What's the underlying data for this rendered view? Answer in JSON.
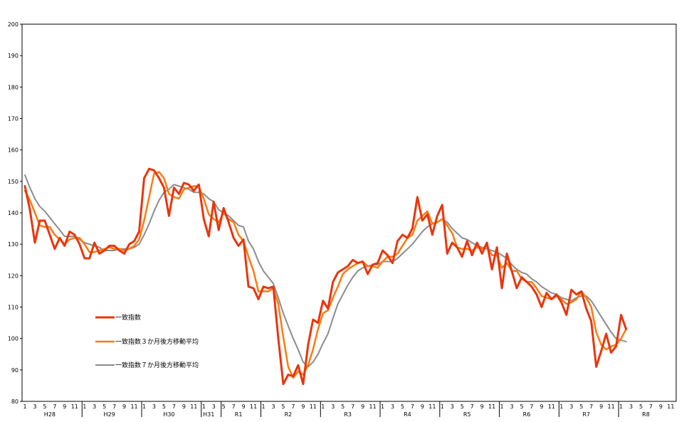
{
  "chart_data": {
    "type": "line",
    "ylim": [
      80,
      200
    ],
    "yticks": [
      80,
      90,
      100,
      110,
      120,
      130,
      140,
      150,
      160,
      170,
      180,
      190,
      200
    ],
    "grid": false,
    "legend_position": "bottom-left",
    "month_labels": [
      "1",
      "3",
      "5",
      "7",
      "9",
      "11",
      "1",
      "3",
      "5",
      "7",
      "9",
      "11",
      "1",
      "3",
      "5",
      "7",
      "9",
      "11",
      "1",
      "3",
      "5",
      "7",
      "9",
      "11",
      "1",
      "3",
      "5",
      "7",
      "9",
      "11",
      "1",
      "3",
      "5",
      "7",
      "9",
      "11",
      "1",
      "3",
      "5",
      "7",
      "9",
      "11",
      "1",
      "3",
      "5",
      "7",
      "9",
      "11",
      "1",
      "3",
      "5",
      "7",
      "9",
      "11",
      "1",
      "3",
      "5",
      "7",
      "9",
      "11",
      "1",
      "3",
      "5",
      "7",
      "9",
      "11"
    ],
    "era_labels": [
      {
        "label": "H28",
        "month_index": 5
      },
      {
        "label": "H29",
        "month_index": 17
      },
      {
        "label": "H30",
        "month_index": 29
      },
      {
        "label": "H31",
        "month_index": 37
      },
      {
        "label": "R1",
        "month_index": 43
      },
      {
        "label": "R2",
        "month_index": 53
      },
      {
        "label": "R3",
        "month_index": 65
      },
      {
        "label": "R4",
        "month_index": 77
      },
      {
        "label": "R5",
        "month_index": 89
      },
      {
        "label": "R6",
        "month_index": 101
      },
      {
        "label": "R7",
        "month_index": 113
      },
      {
        "label": "R8",
        "month_index": 125
      }
    ],
    "era_boundaries": [
      12,
      24,
      36,
      40,
      48,
      60,
      72,
      84,
      96,
      108,
      120
    ],
    "x_count": 132,
    "series": [
      {
        "name": "一致指数",
        "color": "#e8360e",
        "values": [
          148.5,
          141.0,
          130.5,
          137.5,
          137.5,
          133.0,
          128.5,
          132.0,
          129.5,
          134.0,
          133.0,
          130.0,
          125.5,
          125.5,
          130.5,
          127.0,
          128.0,
          129.5,
          129.5,
          128.0,
          127.0,
          130.0,
          131.0,
          134.0,
          151.0,
          154.0,
          153.5,
          151.0,
          148.0,
          139.0,
          148.0,
          146.0,
          149.5,
          149.0,
          147.0,
          149.0,
          138.0,
          132.5,
          143.5,
          134.5,
          141.5,
          137.0,
          132.0,
          129.5,
          131.5,
          116.5,
          116.0,
          112.5,
          116.5,
          116.0,
          116.5,
          100.0,
          85.5,
          88.5,
          88.0,
          91.5,
          85.5,
          98.0,
          106.0,
          105.0,
          112.0,
          109.5,
          118.0,
          121.0,
          122.0,
          123.0,
          125.0,
          124.0,
          124.5,
          120.5,
          123.5,
          124.0,
          128.0,
          126.5,
          124.0,
          131.0,
          133.0,
          132.0,
          135.0,
          145.0,
          137.5,
          139.5,
          133.0,
          139.0,
          142.5,
          127.0,
          130.5,
          129.0,
          126.0,
          131.0,
          126.5,
          130.5,
          127.0,
          130.5,
          122.0,
          129.0,
          116.0,
          127.0,
          121.5,
          116.0,
          119.5,
          118.0,
          116.5,
          114.0,
          110.0,
          114.5,
          112.5,
          114.0,
          111.5,
          107.5,
          115.5,
          114.0,
          115.0,
          109.5,
          105.5,
          91.0,
          96.0,
          101.5,
          95.5,
          97.5,
          107.5,
          103.0
        ]
      },
      {
        "name": "一致指数３か月後方移動平均",
        "color": "#f97b10",
        "values": [
          147.0,
          144.0,
          140.0,
          136.0,
          135.5,
          135.5,
          133.0,
          131.5,
          130.0,
          131.5,
          132.0,
          132.0,
          130.0,
          127.5,
          127.5,
          128.0,
          128.5,
          129.0,
          128.5,
          128.5,
          128.0,
          128.5,
          129.5,
          131.5,
          137.5,
          145.0,
          152.5,
          153.0,
          151.0,
          146.0,
          145.0,
          144.5,
          147.5,
          148.0,
          148.5,
          148.5,
          144.5,
          139.5,
          138.0,
          137.0,
          140.0,
          138.0,
          137.0,
          133.0,
          131.0,
          126.0,
          121.5,
          115.0,
          115.0,
          115.0,
          116.0,
          111.0,
          100.5,
          91.0,
          87.5,
          89.5,
          88.5,
          91.5,
          96.5,
          103.0,
          108.0,
          109.0,
          113.0,
          116.5,
          120.5,
          122.0,
          123.0,
          124.0,
          124.5,
          123.0,
          123.0,
          122.5,
          124.5,
          126.0,
          126.0,
          127.0,
          129.5,
          132.0,
          133.0,
          137.5,
          139.0,
          140.5,
          136.5,
          137.0,
          138.0,
          136.0,
          133.5,
          129.0,
          128.5,
          128.5,
          128.0,
          129.0,
          128.5,
          129.5,
          126.5,
          126.5,
          122.5,
          124.0,
          121.5,
          121.5,
          119.0,
          118.0,
          118.0,
          116.0,
          113.5,
          113.0,
          112.5,
          113.5,
          112.5,
          111.0,
          111.5,
          112.5,
          115.0,
          113.0,
          110.0,
          102.0,
          98.0,
          96.5,
          97.5,
          98.0,
          100.0,
          103.0
        ]
      },
      {
        "name": "一致指数７か月後方移動平均",
        "color": "#8c8c8c",
        "values": [
          152.0,
          148.0,
          144.5,
          142.0,
          140.5,
          138.5,
          136.5,
          134.5,
          132.5,
          132.5,
          132.5,
          131.5,
          130.5,
          130.0,
          129.5,
          129.0,
          128.0,
          128.0,
          128.0,
          128.5,
          128.5,
          128.5,
          129.0,
          130.0,
          133.0,
          136.5,
          140.5,
          144.0,
          146.5,
          147.5,
          149.0,
          148.5,
          148.0,
          147.5,
          146.5,
          146.5,
          146.0,
          144.5,
          143.5,
          141.0,
          140.0,
          139.0,
          137.5,
          136.0,
          135.5,
          131.0,
          128.5,
          124.5,
          121.5,
          119.5,
          117.5,
          113.0,
          108.0,
          104.0,
          100.0,
          96.5,
          92.5,
          91.0,
          92.5,
          95.0,
          98.5,
          101.5,
          106.5,
          111.0,
          114.0,
          117.0,
          119.5,
          121.5,
          122.5,
          123.0,
          123.5,
          123.5,
          124.5,
          124.5,
          124.5,
          125.5,
          127.0,
          128.5,
          130.0,
          132.0,
          134.0,
          135.5,
          136.5,
          137.0,
          138.0,
          137.0,
          135.0,
          133.5,
          132.0,
          131.5,
          130.5,
          129.5,
          129.0,
          128.5,
          128.0,
          127.5,
          126.5,
          125.5,
          123.5,
          122.0,
          121.0,
          120.5,
          119.0,
          118.0,
          116.5,
          115.5,
          114.5,
          114.0,
          113.0,
          112.5,
          112.0,
          113.0,
          113.5,
          113.5,
          112.0,
          109.5,
          107.0,
          104.5,
          102.0,
          100.0,
          99.5,
          99.0
        ]
      }
    ]
  }
}
